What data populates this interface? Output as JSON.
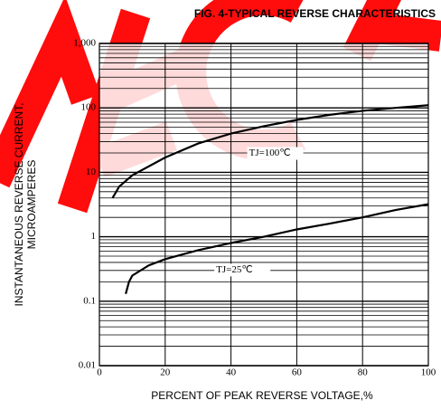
{
  "chart_data": {
    "type": "line",
    "title": "FIG. 4-TYPICAL REVERSE CHARACTERISTICS",
    "y_label": [
      "INSTANTANEOUS REVERSE CURRENT,",
      "MICROAMPERES"
    ],
    "x_label": "PERCENT OF PEAK REVERSE VOLTAGE,%",
    "log_y": true,
    "grid": true,
    "xlim": [
      0,
      100
    ],
    "xticks": [
      0,
      20,
      40,
      60,
      80,
      100
    ],
    "ylim": [
      0.01,
      1000
    ],
    "yticks": [
      0.01,
      0.1,
      1,
      10,
      100,
      {
        "value": 1000,
        "label": "1,000"
      }
    ],
    "series": [
      {
        "name": "TJ=100℃",
        "color": "#000000",
        "x": [
          4,
          6,
          10,
          20,
          30,
          40,
          50,
          60,
          70,
          80,
          90,
          100
        ],
        "values": [
          4,
          6,
          9,
          17,
          28,
          40,
          52,
          65,
          78,
          90,
          100,
          110
        ]
      },
      {
        "name": "TJ=25℃",
        "color": "#000000",
        "x": [
          8,
          9,
          10,
          15,
          20,
          30,
          40,
          50,
          60,
          70,
          80,
          90,
          100
        ],
        "values": [
          0.13,
          0.2,
          0.25,
          0.36,
          0.45,
          0.62,
          0.8,
          1.0,
          1.3,
          1.6,
          2.0,
          2.6,
          3.2
        ]
      }
    ]
  }
}
